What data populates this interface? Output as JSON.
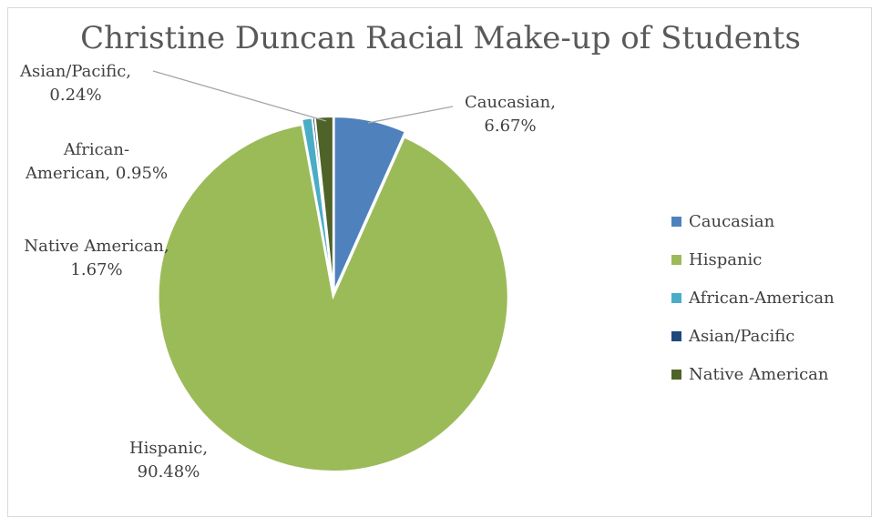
{
  "chart_data": {
    "type": "pie",
    "title": "Christine Duncan Racial Make-up of Students",
    "slices": [
      {
        "name": "Caucasian",
        "value": 6.67,
        "label": "Caucasian,|6.67%",
        "color": "#4f81bd"
      },
      {
        "name": "Hispanic",
        "value": 90.48,
        "label": "Hispanic,|90.48%",
        "color": "#9bbb59"
      },
      {
        "name": "African-American",
        "value": 0.95,
        "label": "African-|American, 0.95%",
        "color": "#4bacc6"
      },
      {
        "name": "Asian/Pacific",
        "value": 0.24,
        "label": "Asian/Pacific,|0.24%",
        "color": "#1f497d"
      },
      {
        "name": "Native American",
        "value": 1.67,
        "label": "Native American,|1.67%",
        "color": "#4f6228"
      }
    ],
    "legend": {
      "position": "right",
      "entries": [
        "Caucasian",
        "Hispanic",
        "African-American",
        "Asian/Pacific",
        "Native American"
      ]
    }
  }
}
